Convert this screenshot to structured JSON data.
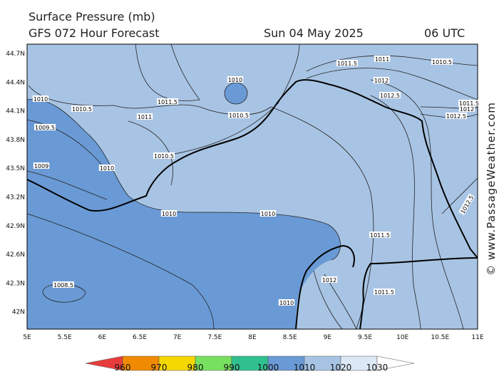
{
  "header": {
    "title": "Surface Pressure (mb)",
    "model": "GFS 072 Hour Forecast",
    "date": "Sun 04 May 2025",
    "time": "06 UTC"
  },
  "axes": {
    "y_labels": [
      "44.7N",
      "44.4N",
      "44.1N",
      "43.8N",
      "43.5N",
      "43.2N",
      "42.9N",
      "42.6N",
      "42.3N",
      "42N"
    ],
    "x_labels": [
      "5E",
      "5.5E",
      "6E",
      "6.5E",
      "7E",
      "7.5E",
      "8E",
      "8.5E",
      "9E",
      "9.5E",
      "10E",
      "10.5E",
      "11E"
    ]
  },
  "contour_labels": [
    "1011",
    "1011.5",
    "1010.5",
    "1012",
    "1012.5",
    "1011.5",
    "1012",
    "1012.5",
    "1010",
    "1011.5",
    "1010.5",
    "1011",
    "1010.5",
    "1010",
    "1009.5",
    "1010.5",
    "1009",
    "1010",
    "1010",
    "1010",
    "1012.5",
    "1011.5",
    "1012",
    "1008.5",
    "1011.5",
    "1010"
  ],
  "legend": {
    "labels": [
      "960",
      "970",
      "980",
      "990",
      "1000",
      "1010",
      "1020",
      "1030"
    ],
    "colors": [
      "#e83c3c",
      "#f08a00",
      "#f5d800",
      "#78e060",
      "#30c090",
      "#6a9ad6",
      "#a8c4e4",
      "#dce8f6",
      "#ffffff"
    ]
  },
  "watermark": "© www.PassageWeather.com"
}
